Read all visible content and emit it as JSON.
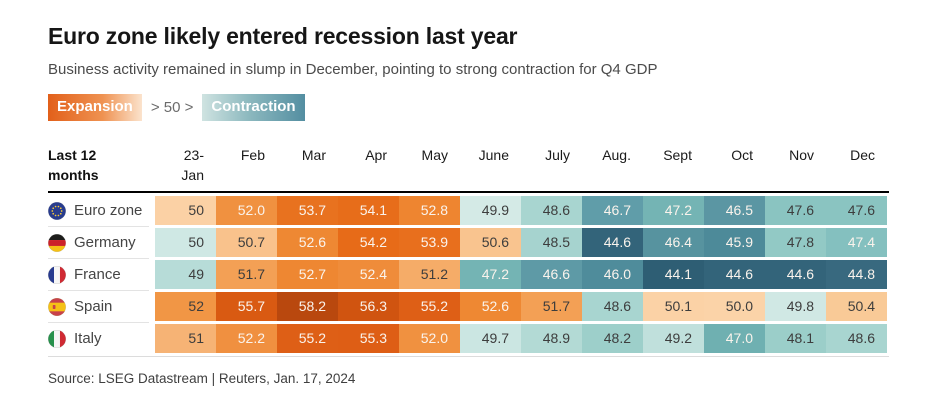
{
  "header": {
    "title": "Euro zone likely entered recession last year",
    "subtitle": "Business activity remained in slump in December, pointing to strong contraction for Q4 GDP"
  },
  "legend": {
    "expansion_label": "Expansion",
    "threshold_label": "> 50 >",
    "contraction_label": "Contraction",
    "expansion_color": "#e2601a",
    "contraction_color": "#538ea1"
  },
  "table": {
    "corner_label": "Last 12\nmonths",
    "months": [
      "23-\nJan",
      "Feb",
      "Mar",
      "Apr",
      "May",
      "June",
      "July",
      "Aug.",
      "Sept",
      "Oct",
      "Nov",
      "Dec"
    ],
    "rows": [
      {
        "country": "Euro zone",
        "flag": "eu",
        "cells": [
          {
            "v": "50",
            "bg": "#fbd1a5",
            "fg": "dark"
          },
          {
            "v": "52.0",
            "bg": "#f09140",
            "fg": "light"
          },
          {
            "v": "53.7",
            "bg": "#e8721f",
            "fg": "light"
          },
          {
            "v": "54.1",
            "bg": "#e76d1a",
            "fg": "light"
          },
          {
            "v": "52.8",
            "bg": "#ee8530",
            "fg": "light"
          },
          {
            "v": "49.9",
            "bg": "#d4eae6",
            "fg": "dark"
          },
          {
            "v": "48.6",
            "bg": "#a8d5d0",
            "fg": "dark"
          },
          {
            "v": "46.7",
            "bg": "#609da9",
            "fg": "light"
          },
          {
            "v": "47.2",
            "bg": "#74b4b4",
            "fg": "light"
          },
          {
            "v": "46.5",
            "bg": "#5b96a3",
            "fg": "light"
          },
          {
            "v": "47.6",
            "bg": "#8ac4c1",
            "fg": "dark"
          },
          {
            "v": "47.6",
            "bg": "#8ac4c1",
            "fg": "dark"
          }
        ]
      },
      {
        "country": "Germany",
        "flag": "de",
        "cells": [
          {
            "v": "50",
            "bg": "#cfe8e4",
            "fg": "dark"
          },
          {
            "v": "50.7",
            "bg": "#f9c28c",
            "fg": "dark"
          },
          {
            "v": "52.6",
            "bg": "#ee8833",
            "fg": "light"
          },
          {
            "v": "54.2",
            "bg": "#e76b18",
            "fg": "light"
          },
          {
            "v": "53.9",
            "bg": "#e86f1d",
            "fg": "light"
          },
          {
            "v": "50.6",
            "bg": "#f9c48f",
            "fg": "dark"
          },
          {
            "v": "48.5",
            "bg": "#a6d3cf",
            "fg": "dark"
          },
          {
            "v": "44.6",
            "bg": "#33647a",
            "fg": "light"
          },
          {
            "v": "46.4",
            "bg": "#57939f",
            "fg": "light"
          },
          {
            "v": "45.9",
            "bg": "#4d8a99",
            "fg": "light"
          },
          {
            "v": "47.8",
            "bg": "#92c9c5",
            "fg": "dark"
          },
          {
            "v": "47.4",
            "bg": "#84c0bf",
            "fg": "light"
          }
        ]
      },
      {
        "country": "France",
        "flag": "fr",
        "cells": [
          {
            "v": "49",
            "bg": "#b7dcd8",
            "fg": "dark"
          },
          {
            "v": "51.7",
            "bg": "#f3a055",
            "fg": "dark"
          },
          {
            "v": "52.7",
            "bg": "#ee8732",
            "fg": "light"
          },
          {
            "v": "52.4",
            "bg": "#ef8c3a",
            "fg": "light"
          },
          {
            "v": "51.2",
            "bg": "#f5ac68",
            "fg": "dark"
          },
          {
            "v": "47.2",
            "bg": "#74b4b4",
            "fg": "light"
          },
          {
            "v": "46.6",
            "bg": "#5e9aa6",
            "fg": "light"
          },
          {
            "v": "46.0",
            "bg": "#4f8c9b",
            "fg": "light"
          },
          {
            "v": "44.1",
            "bg": "#2e5e74",
            "fg": "light"
          },
          {
            "v": "44.6",
            "bg": "#33647a",
            "fg": "light"
          },
          {
            "v": "44.6",
            "bg": "#33647a",
            "fg": "light"
          },
          {
            "v": "44.8",
            "bg": "#38697f",
            "fg": "light"
          }
        ]
      },
      {
        "country": "Spain",
        "flag": "es",
        "cells": [
          {
            "v": "52",
            "bg": "#f19645",
            "fg": "dark"
          },
          {
            "v": "55.7",
            "bg": "#d95a12",
            "fg": "light"
          },
          {
            "v": "58.2",
            "bg": "#b9480e",
            "fg": "light"
          },
          {
            "v": "56.3",
            "bg": "#d05410",
            "fg": "light"
          },
          {
            "v": "55.2",
            "bg": "#de5f16",
            "fg": "light"
          },
          {
            "v": "52.6",
            "bg": "#ee8833",
            "fg": "light"
          },
          {
            "v": "51.7",
            "bg": "#f3a055",
            "fg": "dark"
          },
          {
            "v": "48.6",
            "bg": "#a8d5d0",
            "fg": "dark"
          },
          {
            "v": "50.1",
            "bg": "#fbd2a6",
            "fg": "dark"
          },
          {
            "v": "50.0",
            "bg": "#fbd3a8",
            "fg": "dark"
          },
          {
            "v": "49.8",
            "bg": "#d0e8e4",
            "fg": "dark"
          },
          {
            "v": "50.4",
            "bg": "#f9ca97",
            "fg": "dark"
          }
        ]
      },
      {
        "country": "Italy",
        "flag": "it",
        "cells": [
          {
            "v": "51",
            "bg": "#f6b375",
            "fg": "dark"
          },
          {
            "v": "52.2",
            "bg": "#f09040",
            "fg": "light"
          },
          {
            "v": "55.2",
            "bg": "#de5f16",
            "fg": "light"
          },
          {
            "v": "55.3",
            "bg": "#de5e15",
            "fg": "light"
          },
          {
            "v": "52.0",
            "bg": "#f09140",
            "fg": "light"
          },
          {
            "v": "49.7",
            "bg": "#cbe6e2",
            "fg": "dark"
          },
          {
            "v": "48.9",
            "bg": "#b3dad5",
            "fg": "dark"
          },
          {
            "v": "48.2",
            "bg": "#9dcfca",
            "fg": "dark"
          },
          {
            "v": "49.2",
            "bg": "#c0e0dc",
            "fg": "dark"
          },
          {
            "v": "47.0",
            "bg": "#6fb0b1",
            "fg": "light"
          },
          {
            "v": "48.1",
            "bg": "#9bcec9",
            "fg": "dark"
          },
          {
            "v": "48.6",
            "bg": "#a8d5d0",
            "fg": "dark"
          }
        ]
      }
    ]
  },
  "footer": {
    "source": "Source: LSEG Datastream | Reuters, Jan. 17, 2024"
  },
  "chart_data": {
    "type": "heatmap",
    "title": "Euro zone likely entered recession last year",
    "subtitle": "Business activity remained in slump in December, pointing to strong contraction for Q4 GDP",
    "x_labels": [
      "23-Jan",
      "Feb",
      "Mar",
      "Apr",
      "May",
      "June",
      "July",
      "Aug.",
      "Sept",
      "Oct",
      "Nov",
      "Dec"
    ],
    "series": [
      {
        "name": "Euro zone",
        "values": [
          50,
          52.0,
          53.7,
          54.1,
          52.8,
          49.9,
          48.6,
          46.7,
          47.2,
          46.5,
          47.6,
          47.6
        ]
      },
      {
        "name": "Germany",
        "values": [
          50,
          50.7,
          52.6,
          54.2,
          53.9,
          50.6,
          48.5,
          44.6,
          46.4,
          45.9,
          47.8,
          47.4
        ]
      },
      {
        "name": "France",
        "values": [
          49,
          51.7,
          52.7,
          52.4,
          51.2,
          47.2,
          46.6,
          46.0,
          44.1,
          44.6,
          44.6,
          44.8
        ]
      },
      {
        "name": "Spain",
        "values": [
          52,
          55.7,
          58.2,
          56.3,
          55.2,
          52.6,
          51.7,
          48.6,
          50.1,
          50.0,
          49.8,
          50.4
        ]
      },
      {
        "name": "Italy",
        "values": [
          51,
          52.2,
          55.2,
          55.3,
          52.0,
          49.7,
          48.9,
          48.2,
          49.2,
          47.0,
          48.1,
          48.6
        ]
      }
    ],
    "colormap": {
      "midpoint": 50,
      "above_midpoint": "orange = expansion (darker orange = higher)",
      "below_midpoint": "teal = contraction (darker teal = lower)"
    },
    "legend_position": "top-left",
    "grid": false
  }
}
